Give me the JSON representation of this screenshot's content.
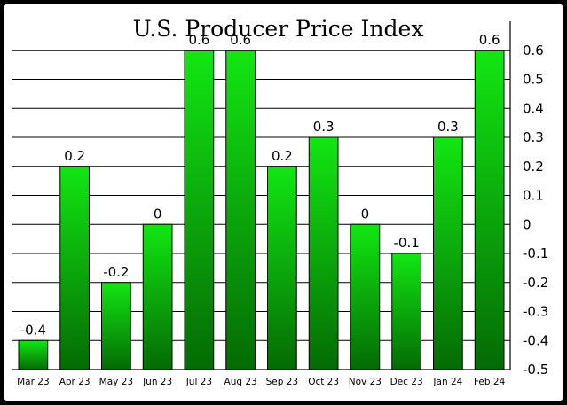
{
  "chart_data": {
    "type": "bar",
    "title": "U.S. Producer Price Index",
    "categories": [
      "Mar 23",
      "Apr 23",
      "May 23",
      "Jun 23",
      "Jul 23",
      "Aug 23",
      "Sep 23",
      "Oct 23",
      "Nov 23",
      "Dec 23",
      "Jan 24",
      "Feb 24"
    ],
    "values": [
      -0.4,
      0.2,
      -0.2,
      0,
      0.6,
      0.6,
      0.2,
      0.3,
      0,
      -0.1,
      0.3,
      0.6
    ],
    "data_labels": [
      "-0.4",
      "0.2",
      "-0.2",
      "0",
      "0.6",
      "0.6",
      "0.2",
      "0.3",
      "0",
      "-0.1",
      "0.3",
      "0.6"
    ],
    "yticks": [
      "0.6",
      "0.5",
      "0.4",
      "0.3",
      "0.2",
      "0.1",
      "0",
      "-0.1",
      "-0.2",
      "-0.3",
      "-0.4",
      "-0.5"
    ],
    "ylim": [
      -0.5,
      0.7
    ],
    "yaxis_position": "right",
    "grid": true,
    "bar_color_top": "#12e612",
    "bar_color_bottom": "#046b04"
  }
}
